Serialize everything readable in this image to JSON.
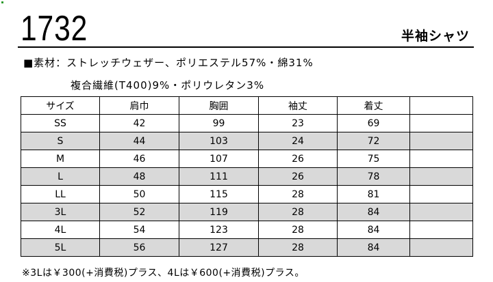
{
  "header": {
    "product_code": "1732",
    "product_name": "半袖シャツ"
  },
  "material": {
    "line1": "■素材：ストレッチウェザー、ポリエステル57%・綿31%",
    "line2": "複合繊維(T400)9%・ポリウレタン3%"
  },
  "size_table": {
    "headers": [
      "サイズ",
      "肩巾",
      "胸囲",
      "袖丈",
      "着丈",
      ""
    ],
    "rows": [
      [
        "SS",
        "42",
        "99",
        "23",
        "69",
        ""
      ],
      [
        "S",
        "44",
        "103",
        "24",
        "72",
        ""
      ],
      [
        "M",
        "46",
        "107",
        "26",
        "75",
        ""
      ],
      [
        "L",
        "48",
        "111",
        "26",
        "78",
        ""
      ],
      [
        "LL",
        "50",
        "115",
        "28",
        "81",
        ""
      ],
      [
        "3L",
        "52",
        "119",
        "28",
        "84",
        ""
      ],
      [
        "4L",
        "54",
        "123",
        "28",
        "84",
        ""
      ],
      [
        "5L",
        "56",
        "127",
        "28",
        "84",
        ""
      ]
    ],
    "shade_color": "#d9d9d9"
  },
  "footnote": "※3Lは￥300(+消費税)プラス、4Lは￥600(+消費税)プラス。"
}
